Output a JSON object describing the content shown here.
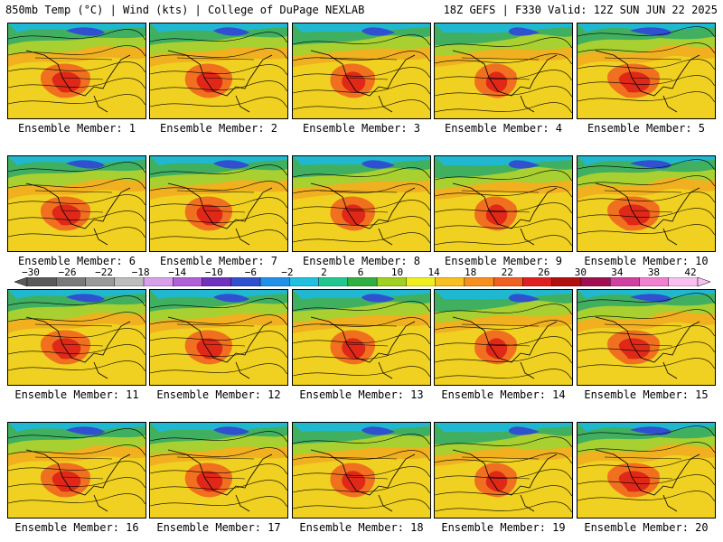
{
  "header": {
    "left": "850mb Temp (°C) | Wind (kts) | College of DuPage NEXLAB",
    "right": "18Z GEFS | F330 Valid: 12Z SUN JUN 22 2025"
  },
  "panel_label_prefix": "Ensemble Member: ",
  "members": [
    1,
    2,
    3,
    4,
    5,
    6,
    7,
    8,
    9,
    10,
    11,
    12,
    13,
    14,
    15,
    16,
    17,
    18,
    19,
    20
  ],
  "colorbar": {
    "labels": [
      "-30",
      "-26",
      "-22",
      "-18",
      "-14",
      "-10",
      "-6",
      "-2",
      "2",
      "6",
      "10",
      "14",
      "18",
      "22",
      "26",
      "30",
      "34",
      "38",
      "42"
    ],
    "colors": [
      "#5a5a5a",
      "#7a7a7a",
      "#9a9a9a",
      "#bdbdbd",
      "#d8a0e8",
      "#b060d8",
      "#7030c0",
      "#3050d0",
      "#2090e8",
      "#20c0e0",
      "#20c890",
      "#30b040",
      "#a0d020",
      "#f0f020",
      "#f8c020",
      "#f89020",
      "#f06020",
      "#e02020",
      "#b01010",
      "#a01050",
      "#d040a0",
      "#f080d0",
      "#f8c0f0"
    ]
  }
}
